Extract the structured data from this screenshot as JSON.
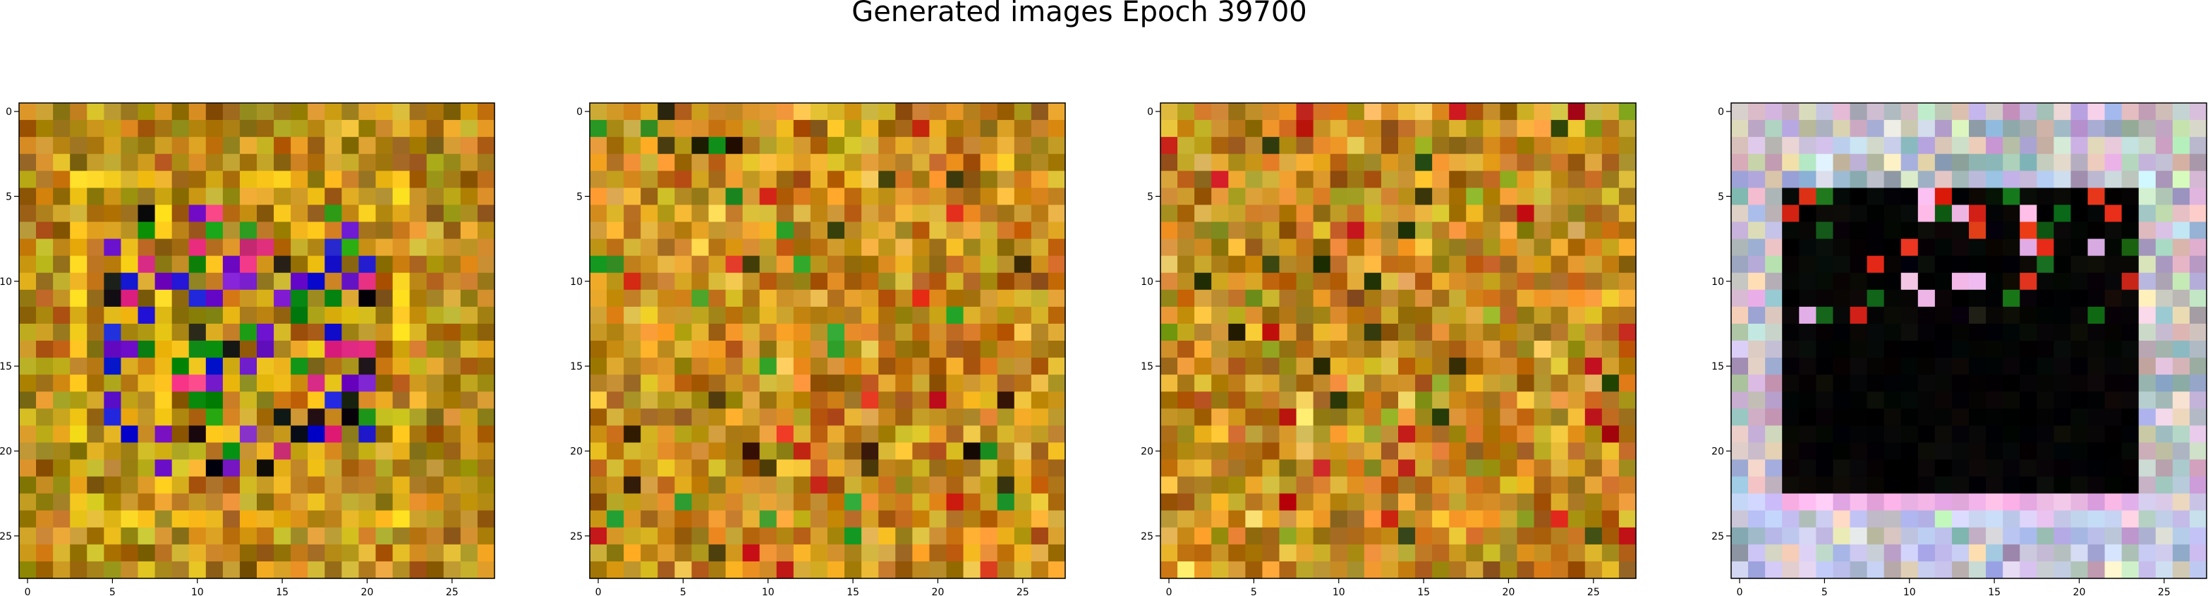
{
  "title": "Generated images Epoch 39700",
  "chart_data": [
    {
      "type": "heatmap",
      "description": "",
      "grid": {
        "rows": 28,
        "cols": 28
      },
      "xticks": [
        0,
        5,
        10,
        15,
        20,
        25
      ],
      "yticks": [
        0,
        5,
        10,
        15,
        20,
        25
      ],
      "xlim": [
        -0.5,
        27.5
      ],
      "ylim": [
        27.5,
        -0.5
      ],
      "palette": "noisy-olive-amber",
      "base_color": "#b88a1c",
      "accent_colors": [
        "#1818d0",
        "#e03080",
        "#f0c018",
        "#101010",
        "#7018c8",
        "#109010"
      ],
      "highlight_frame": "bright square border"
    },
    {
      "type": "heatmap",
      "grid": {
        "rows": 28,
        "cols": 28
      },
      "xticks": [
        0,
        5,
        10,
        15,
        20,
        25
      ],
      "yticks": [
        0,
        5,
        10,
        15,
        20,
        25
      ],
      "xlim": [
        -0.5,
        27.5
      ],
      "ylim": [
        27.5,
        -0.5
      ],
      "palette": "noisy-amber",
      "base_color": "#c88c20",
      "accent_colors": [
        "#2a9a2a",
        "#d82a1a",
        "#f0c050",
        "#3a2a08"
      ]
    },
    {
      "type": "heatmap",
      "grid": {
        "rows": 28,
        "cols": 28
      },
      "xticks": [
        0,
        5,
        10,
        15,
        20,
        25
      ],
      "yticks": [
        0,
        5,
        10,
        15,
        20,
        25
      ],
      "xlim": [
        -0.5,
        27.5
      ],
      "ylim": [
        27.5,
        -0.5
      ],
      "palette": "noisy-amber",
      "base_color": "#c48a22",
      "accent_colors": [
        "#c01818",
        "#2a3a0a",
        "#f0c860",
        "#8aa020"
      ]
    },
    {
      "type": "heatmap",
      "grid": {
        "rows": 28,
        "cols": 28
      },
      "xticks": [
        0,
        5,
        10,
        15,
        20,
        25
      ],
      "yticks": [
        0,
        5,
        10,
        15,
        20,
        25
      ],
      "xlim": [
        -0.5,
        27.5
      ],
      "ylim": [
        27.5,
        -0.5
      ],
      "palette": "pastel-border-dark-center",
      "base_color": "#c8b8b8",
      "accent_colors": [
        "#050505",
        "#e03018",
        "#f0b8e8",
        "#1a6a1a",
        "#c8c8f0"
      ],
      "dark_region": {
        "row_start": 5,
        "row_end": 22,
        "col_start": 3,
        "col_end": 23
      }
    }
  ]
}
